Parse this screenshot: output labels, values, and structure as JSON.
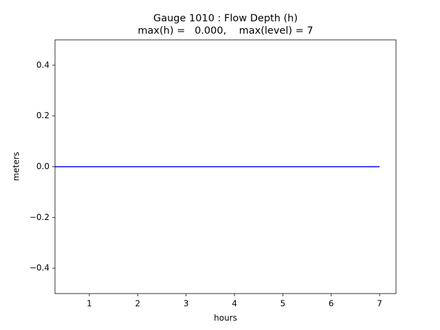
{
  "chart_data": {
    "type": "line",
    "title": "Gauge 1010 : Flow Depth (h)",
    "subtitle": "max(h) =   0.000,    max(level) = 7",
    "x_label": "hours",
    "y_label": "meters",
    "x": [
      0.29,
      1,
      2,
      3,
      4,
      5,
      6,
      7
    ],
    "series": [
      {
        "color": "#0000ff",
        "values": [
          0,
          0,
          0,
          0,
          0,
          0,
          0,
          0
        ]
      }
    ],
    "xlim": [
      0.29,
      7.34
    ],
    "xticks": [
      1,
      2,
      3,
      4,
      5,
      6,
      7
    ],
    "ylim": [
      -0.5,
      0.5
    ],
    "yticks": [
      {
        "value": -0.4,
        "label": "−0.4"
      },
      {
        "value": -0.2,
        "label": "−0.2"
      },
      {
        "value": 0,
        "label": "0.0"
      },
      0.2,
      0.4
    ],
    "grid": false
  }
}
